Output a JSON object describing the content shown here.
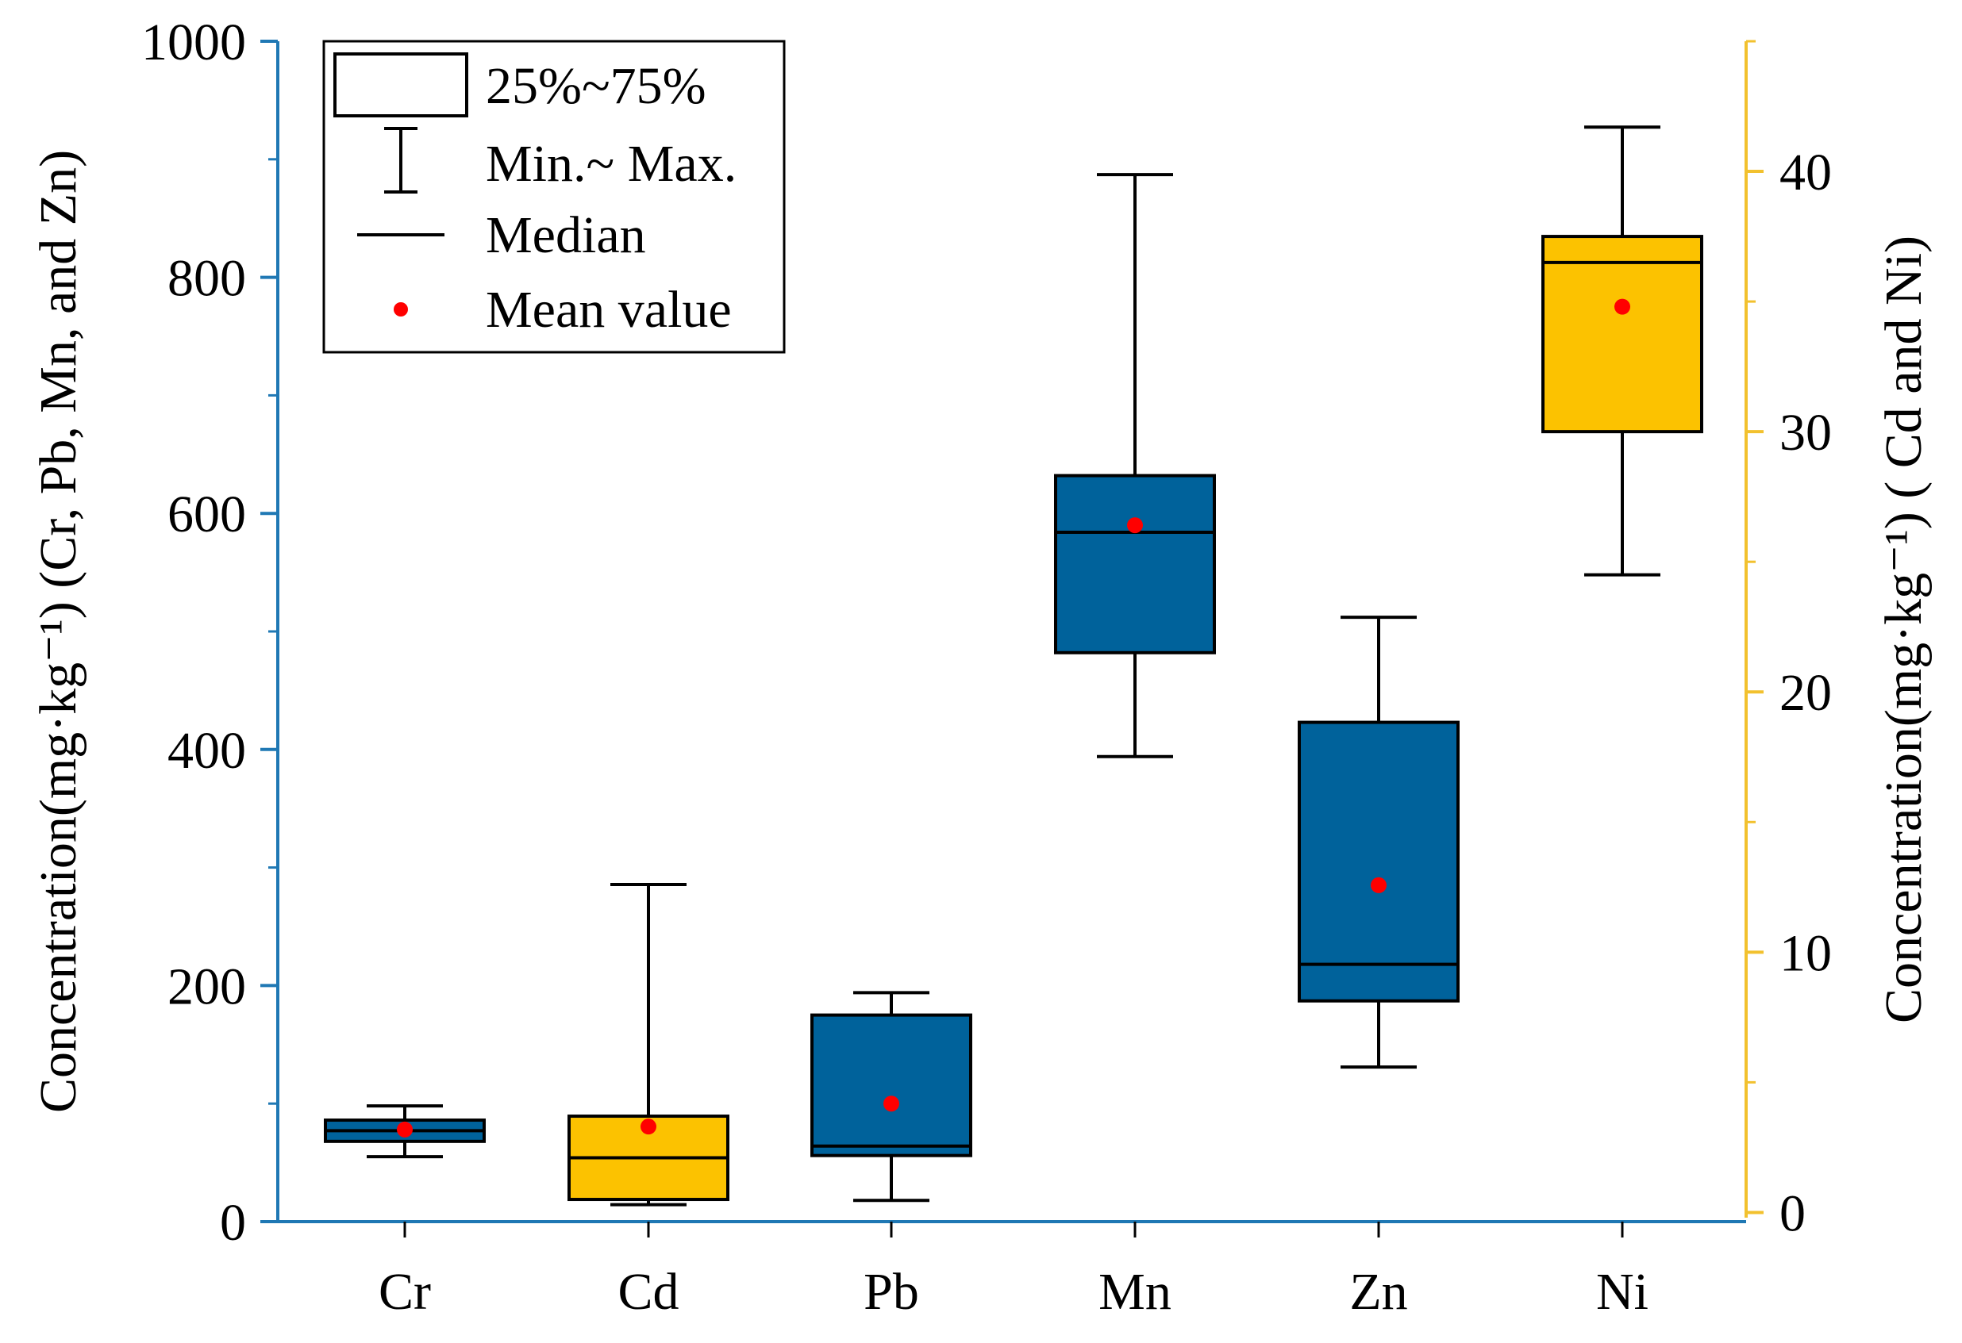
{
  "chart_data": {
    "type": "box",
    "categories": [
      "Cr",
      "Cd",
      "Pb",
      "Mn",
      "Zn",
      "Ni"
    ],
    "boxes": [
      {
        "category": "Cr",
        "axis": "left",
        "min": 55,
        "q1": 68,
        "median": 77,
        "q3": 86,
        "max": 98,
        "mean": 78
      },
      {
        "category": "Cd",
        "axis": "right",
        "min": 0.3,
        "q1": 0.5,
        "median": 2.1,
        "q3": 3.7,
        "max": 12.6,
        "mean": 3.3
      },
      {
        "category": "Pb",
        "axis": "left",
        "min": 18,
        "q1": 56,
        "median": 64,
        "q3": 175,
        "max": 194,
        "mean": 100
      },
      {
        "category": "Mn",
        "axis": "left",
        "min": 394,
        "q1": 482,
        "median": 584,
        "q3": 632,
        "max": 887,
        "mean": 590
      },
      {
        "category": "Zn",
        "axis": "left",
        "min": 131,
        "q1": 187,
        "median": 218,
        "q3": 423,
        "max": 512,
        "mean": 285
      },
      {
        "category": "Ni",
        "axis": "right",
        "min": 24.5,
        "q1": 30.0,
        "median": 36.5,
        "q3": 37.5,
        "max": 41.7,
        "mean": 34.8
      }
    ],
    "left_axis": {
      "label": "Concentration(mg·kg⁻¹) (Cr, Pb, Mn, and Zn)",
      "range": [
        0,
        1000
      ],
      "ticks": [
        0,
        200,
        400,
        600,
        800,
        1000
      ],
      "tick_labels": [
        "0",
        "200",
        "400",
        "600",
        "800",
        "1000"
      ]
    },
    "right_axis": {
      "label": "Concentration(mg·kg⁻¹) ( Cd and Ni)",
      "range": [
        -0.2,
        45
      ],
      "ticks": [
        0,
        10,
        20,
        30,
        40
      ],
      "tick_labels": [
        "0",
        "10",
        "20",
        "30",
        "40"
      ]
    },
    "legend": {
      "placement": "top-left",
      "entries": {
        "box": "25%~75%",
        "whisker": "Min.~ Max.",
        "median": "Median",
        "mean": "Mean value"
      }
    },
    "colors": {
      "left_series": "#00629b",
      "right_series": "#fcc200",
      "mean": "#ff0000",
      "left_axis": "#1f78b4",
      "right_axis": "#f2c12e",
      "outline": "#000000"
    }
  }
}
